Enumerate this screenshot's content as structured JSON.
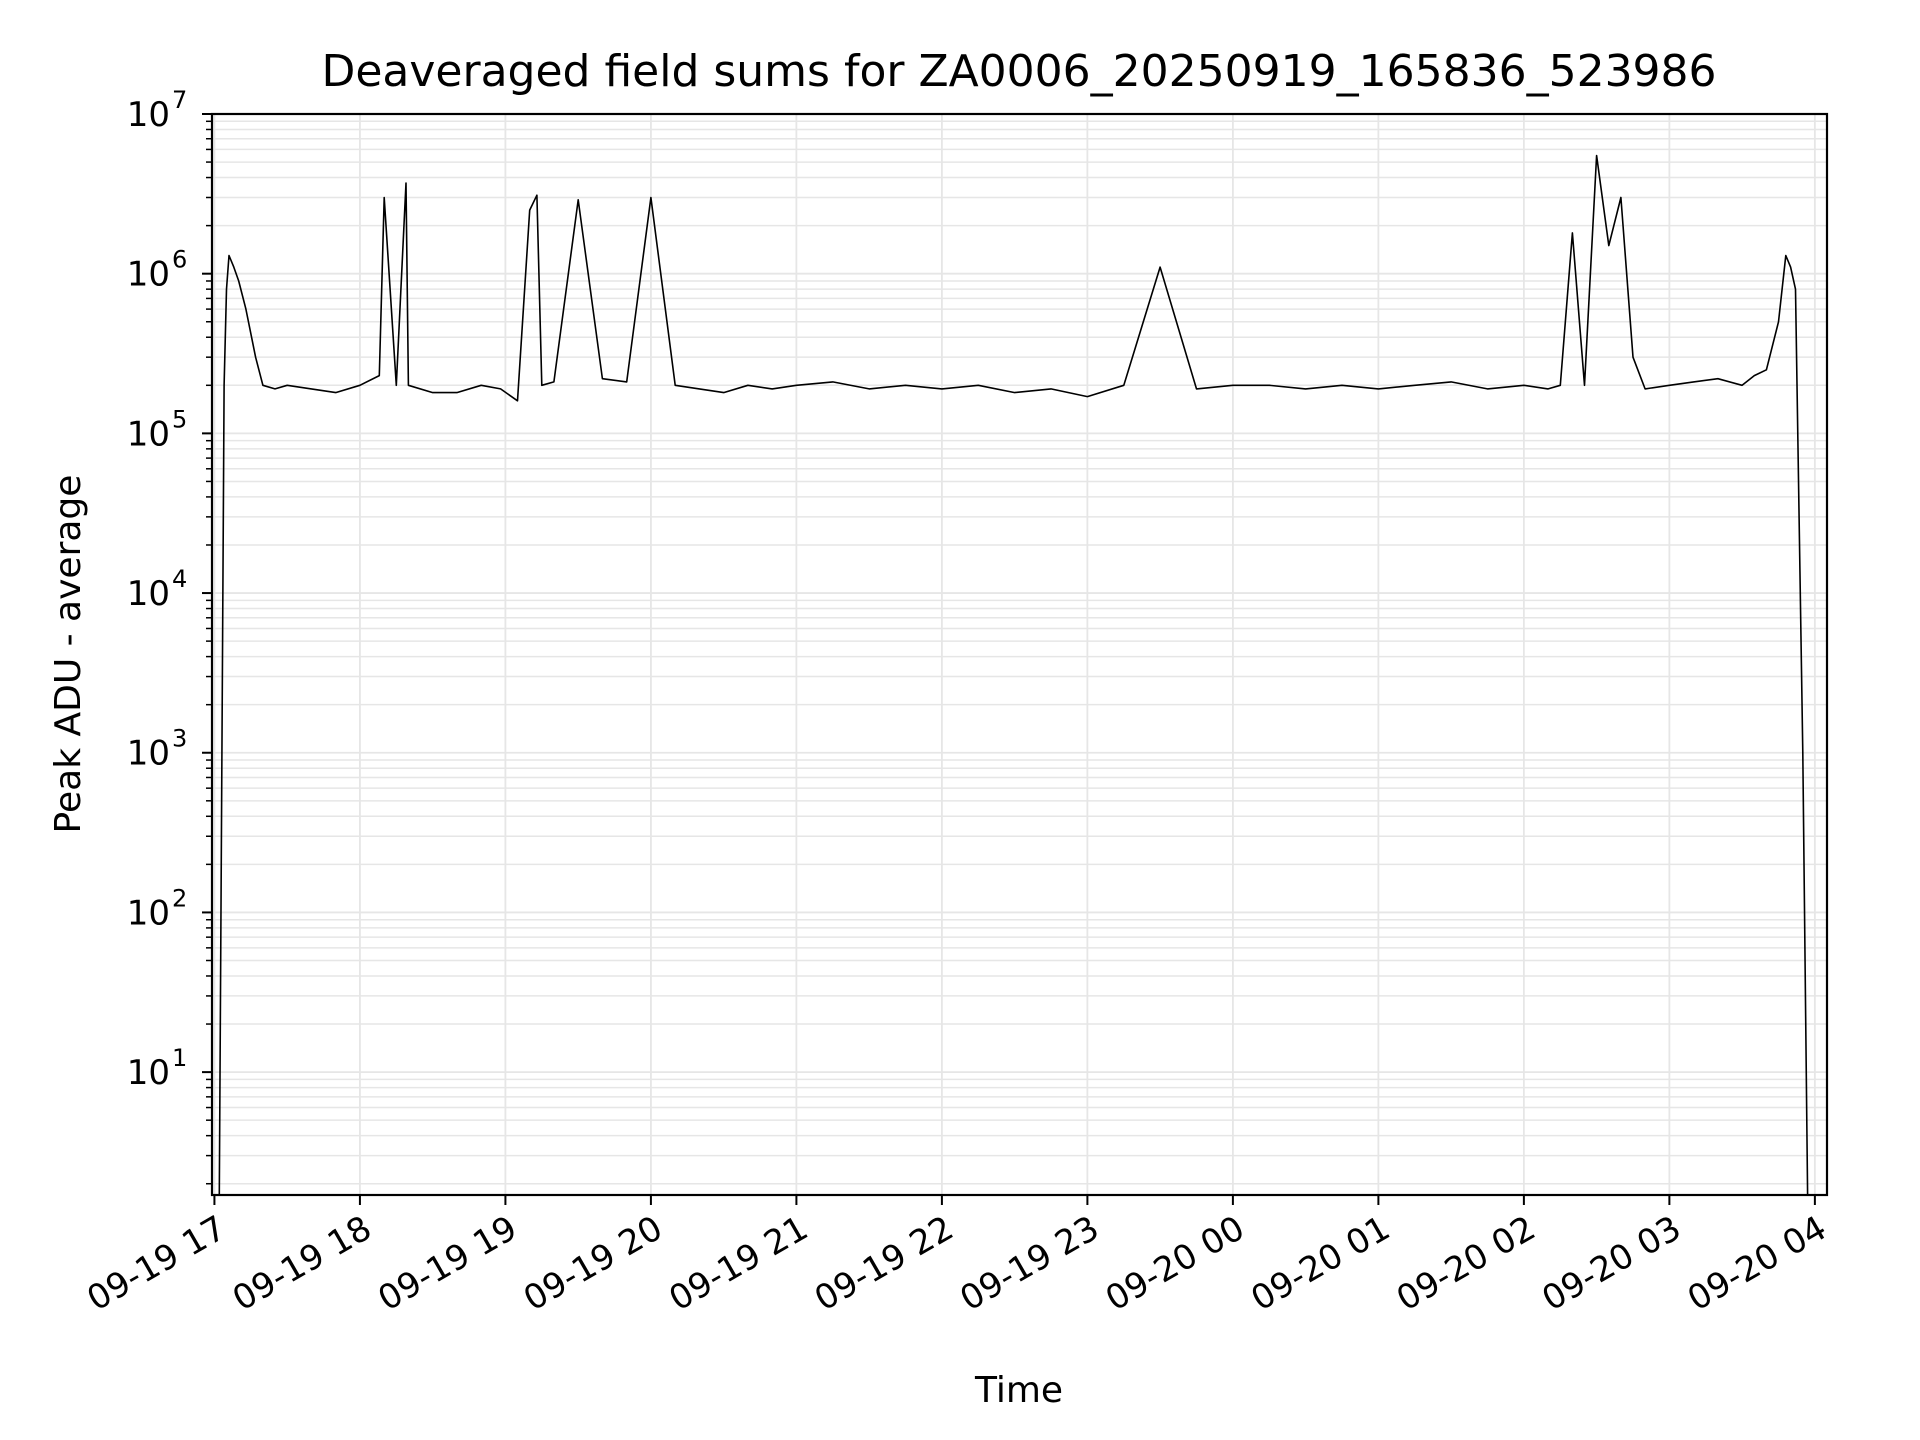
{
  "chart_data": {
    "type": "line",
    "title": "Deaveraged field sums for ZA0006_20250919_165836_523986",
    "xlabel": "Time",
    "ylabel": "Peak ADU - average",
    "yscale": "log",
    "ylim": [
      1.7,
      10000000
    ],
    "xlim": [
      "2025-09-19 16:59",
      "2025-09-20 04:05"
    ],
    "grid": true,
    "line_color": "#000000",
    "grid_color": "#e6e6e6",
    "x_ticks": [
      {
        "value": "2025-09-19 17:00",
        "label": "09-19 17"
      },
      {
        "value": "2025-09-19 18:00",
        "label": "09-19 18"
      },
      {
        "value": "2025-09-19 19:00",
        "label": "09-19 19"
      },
      {
        "value": "2025-09-19 20:00",
        "label": "09-19 20"
      },
      {
        "value": "2025-09-19 21:00",
        "label": "09-19 21"
      },
      {
        "value": "2025-09-19 22:00",
        "label": "09-19 22"
      },
      {
        "value": "2025-09-19 23:00",
        "label": "09-19 23"
      },
      {
        "value": "2025-09-20 00:00",
        "label": "09-20 00"
      },
      {
        "value": "2025-09-20 01:00",
        "label": "09-20 01"
      },
      {
        "value": "2025-09-20 02:00",
        "label": "09-20 02"
      },
      {
        "value": "2025-09-20 03:00",
        "label": "09-20 03"
      },
      {
        "value": "2025-09-20 04:00",
        "label": "09-20 04"
      }
    ],
    "y_ticks": [
      {
        "value": 10,
        "base": "10",
        "exp": "1"
      },
      {
        "value": 100,
        "base": "10",
        "exp": "2"
      },
      {
        "value": 1000,
        "base": "10",
        "exp": "3"
      },
      {
        "value": 10000,
        "base": "10",
        "exp": "4"
      },
      {
        "value": 100000,
        "base": "10",
        "exp": "5"
      },
      {
        "value": 1000000,
        "base": "10",
        "exp": "6"
      },
      {
        "value": 10000000,
        "base": "10",
        "exp": "7"
      }
    ],
    "series": [
      {
        "x": [
          "2025-09-19 17:02",
          "2025-09-19 17:04",
          "2025-09-19 17:05",
          "2025-09-19 17:06",
          "2025-09-19 17:08",
          "2025-09-19 17:10",
          "2025-09-19 17:13",
          "2025-09-19 17:17",
          "2025-09-19 17:20",
          "2025-09-19 17:25",
          "2025-09-19 17:30",
          "2025-09-19 17:40",
          "2025-09-19 17:50",
          "2025-09-19 18:00",
          "2025-09-19 18:08",
          "2025-09-19 18:10",
          "2025-09-19 18:15",
          "2025-09-19 18:19",
          "2025-09-19 18:20",
          "2025-09-19 18:30",
          "2025-09-19 18:40",
          "2025-09-19 18:50",
          "2025-09-19 18:58",
          "2025-09-19 19:05",
          "2025-09-19 19:10",
          "2025-09-19 19:13",
          "2025-09-19 19:15",
          "2025-09-19 19:20",
          "2025-09-19 19:30",
          "2025-09-19 19:40",
          "2025-09-19 19:50",
          "2025-09-19 20:00",
          "2025-09-19 20:10",
          "2025-09-19 20:20",
          "2025-09-19 20:30",
          "2025-09-19 20:40",
          "2025-09-19 20:50",
          "2025-09-19 21:00",
          "2025-09-19 21:15",
          "2025-09-19 21:30",
          "2025-09-19 21:45",
          "2025-09-19 22:00",
          "2025-09-19 22:15",
          "2025-09-19 22:30",
          "2025-09-19 22:45",
          "2025-09-19 23:00",
          "2025-09-19 23:15",
          "2025-09-19 23:30",
          "2025-09-19 23:45",
          "2025-09-20 00:00",
          "2025-09-20 00:15",
          "2025-09-20 00:30",
          "2025-09-20 00:45",
          "2025-09-20 01:00",
          "2025-09-20 01:15",
          "2025-09-20 01:30",
          "2025-09-20 01:45",
          "2025-09-20 02:00",
          "2025-09-20 02:10",
          "2025-09-20 02:15",
          "2025-09-20 02:20",
          "2025-09-20 02:25",
          "2025-09-20 02:30",
          "2025-09-20 02:35",
          "2025-09-20 02:40",
          "2025-09-20 02:45",
          "2025-09-20 02:50",
          "2025-09-20 03:00",
          "2025-09-20 03:10",
          "2025-09-20 03:20",
          "2025-09-20 03:30",
          "2025-09-20 03:35",
          "2025-09-20 03:40",
          "2025-09-20 03:45",
          "2025-09-20 03:48",
          "2025-09-20 03:50",
          "2025-09-20 03:52",
          "2025-09-20 03:55",
          "2025-09-20 03:57",
          "2025-09-20 03:58"
        ],
        "y": [
          1.7,
          200000,
          800000,
          1300000,
          1100000,
          900000,
          600000,
          300000,
          200000,
          190000,
          200000,
          190000,
          180000,
          200000,
          230000,
          3000000,
          200000,
          3700000,
          200000,
          180000,
          180000,
          200000,
          190000,
          160000,
          2500000,
          3100000,
          200000,
          210000,
          2900000,
          220000,
          210000,
          3000000,
          200000,
          190000,
          180000,
          200000,
          190000,
          200000,
          210000,
          190000,
          200000,
          190000,
          200000,
          180000,
          190000,
          170000,
          200000,
          1100000,
          190000,
          200000,
          200000,
          190000,
          200000,
          190000,
          200000,
          210000,
          190000,
          200000,
          190000,
          200000,
          1800000,
          200000,
          5500000,
          1500000,
          3000000,
          300000,
          190000,
          200000,
          210000,
          220000,
          200000,
          230000,
          250000,
          500000,
          1300000,
          1100000,
          800000,
          1000,
          1.7,
          1.7
        ]
      }
    ]
  }
}
